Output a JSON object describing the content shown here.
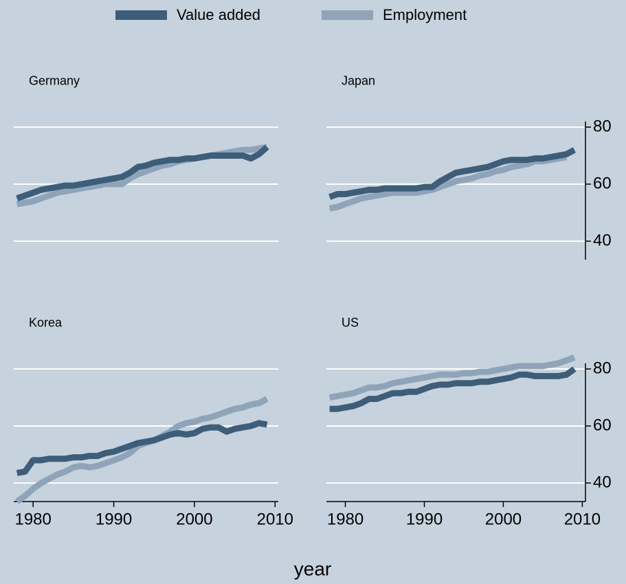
{
  "xlabel": "year",
  "chart_data": [
    {
      "type": "line",
      "title": "Germany",
      "x_axis": false,
      "y_tick_labels": false,
      "x": [
        1978,
        1979,
        1980,
        1981,
        1982,
        1983,
        1984,
        1985,
        1986,
        1987,
        1988,
        1989,
        1990,
        1991,
        1992,
        1993,
        1994,
        1995,
        1996,
        1997,
        1998,
        1999,
        2000,
        2001,
        2002,
        2003,
        2004,
        2005,
        2006,
        2007,
        2008,
        2009
      ],
      "xlim": [
        1977.6,
        2010.4
      ],
      "xticks": [
        1980,
        1990,
        2000,
        2010
      ],
      "ylim": [
        33.5,
        82
      ],
      "yticks": [
        40,
        60,
        80
      ],
      "grid": true,
      "series": [
        {
          "name": "Value added",
          "color": "#3d5d78",
          "values": [
            55,
            56,
            57,
            58,
            58.5,
            59,
            59.5,
            59.5,
            60,
            60.5,
            61,
            61.5,
            62,
            62.5,
            64,
            66,
            66.5,
            67.5,
            68,
            68.5,
            68.5,
            69,
            69,
            69.5,
            70,
            70,
            70,
            70,
            70,
            69,
            70.5,
            73
          ]
        },
        {
          "name": "Employment",
          "color": "#8fa4b8",
          "values": [
            53,
            53.5,
            54,
            55,
            56,
            57,
            57.5,
            58,
            58.5,
            59,
            59.5,
            60,
            60,
            60,
            62,
            63.5,
            64.5,
            65.5,
            66.5,
            67,
            68,
            68.5,
            69,
            69.5,
            70,
            70.5,
            71,
            71.5,
            72,
            72,
            72.5,
            73
          ]
        }
      ]
    },
    {
      "type": "line",
      "title": "Japan",
      "x_axis": false,
      "y_tick_labels": true,
      "x": [
        1978,
        1979,
        1980,
        1981,
        1982,
        1983,
        1984,
        1985,
        1986,
        1987,
        1988,
        1989,
        1990,
        1991,
        1992,
        1993,
        1994,
        1995,
        1996,
        1997,
        1998,
        1999,
        2000,
        2001,
        2002,
        2003,
        2004,
        2005,
        2006,
        2007,
        2008,
        2009
      ],
      "xlim": [
        1977.6,
        2010.4
      ],
      "xticks": [
        1980,
        1990,
        2000,
        2010
      ],
      "ylim": [
        33.5,
        82
      ],
      "yticks": [
        40,
        60,
        80
      ],
      "grid": true,
      "series": [
        {
          "name": "Value added",
          "color": "#3d5d78",
          "values": [
            55.5,
            56.5,
            56.5,
            57,
            57.5,
            58,
            58,
            58.5,
            58.5,
            58.5,
            58.5,
            58.5,
            59,
            59,
            61,
            62.5,
            64,
            64.5,
            65,
            65.5,
            66,
            67,
            68,
            68.5,
            68.5,
            68.5,
            69,
            69,
            69.5,
            70,
            70.5,
            72
          ]
        },
        {
          "name": "Employment",
          "color": "#8fa4b8",
          "values": [
            51.5,
            52,
            53,
            54,
            55,
            55.5,
            56,
            56.5,
            57,
            57,
            57,
            57,
            57.5,
            58,
            59,
            60,
            61,
            61.5,
            62,
            63,
            63.5,
            64.5,
            65,
            66,
            66.5,
            67,
            68,
            68,
            68.5,
            69,
            69.5,
            null
          ]
        }
      ]
    },
    {
      "type": "line",
      "title": "Korea",
      "x_axis": true,
      "y_tick_labels": false,
      "x": [
        1978,
        1979,
        1980,
        1981,
        1982,
        1983,
        1984,
        1985,
        1986,
        1987,
        1988,
        1989,
        1990,
        1991,
        1992,
        1993,
        1994,
        1995,
        1996,
        1997,
        1998,
        1999,
        2000,
        2001,
        2002,
        2003,
        2004,
        2005,
        2006,
        2007,
        2008,
        2009
      ],
      "xlim": [
        1977.6,
        2010.4
      ],
      "xticks": [
        1980,
        1990,
        2000,
        2010
      ],
      "ylim": [
        33.5,
        82
      ],
      "yticks": [
        40,
        60,
        80
      ],
      "grid": true,
      "series": [
        {
          "name": "Value added",
          "color": "#3d5d78",
          "values": [
            43.5,
            44,
            48,
            48,
            48.5,
            48.5,
            48.5,
            49,
            49,
            49.5,
            49.5,
            50.5,
            51,
            52,
            53,
            54,
            54.5,
            55,
            56,
            57,
            57.5,
            57,
            57.5,
            59,
            59.5,
            59.5,
            58,
            59,
            59.5,
            60,
            61,
            60.5
          ]
        },
        {
          "name": "Employment",
          "color": "#8fa4b8",
          "values": [
            33.5,
            35.5,
            38,
            40,
            41.5,
            43,
            44,
            45.5,
            46,
            45.5,
            46,
            47,
            48,
            49,
            50.5,
            53,
            54,
            55,
            56.5,
            58,
            60,
            61,
            61.5,
            62.5,
            63,
            64,
            65,
            66,
            66.5,
            67.5,
            68,
            69.5
          ]
        }
      ]
    },
    {
      "type": "line",
      "title": "US",
      "x_axis": true,
      "y_tick_labels": true,
      "x": [
        1978,
        1979,
        1980,
        1981,
        1982,
        1983,
        1984,
        1985,
        1986,
        1987,
        1988,
        1989,
        1990,
        1991,
        1992,
        1993,
        1994,
        1995,
        1996,
        1997,
        1998,
        1999,
        2000,
        2001,
        2002,
        2003,
        2004,
        2005,
        2006,
        2007,
        2008,
        2009
      ],
      "xlim": [
        1977.6,
        2010.4
      ],
      "xticks": [
        1980,
        1990,
        2000,
        2010
      ],
      "ylim": [
        33.5,
        82
      ],
      "yticks": [
        40,
        60,
        80
      ],
      "grid": true,
      "series": [
        {
          "name": "Value added",
          "color": "#3d5d78",
          "values": [
            66,
            66,
            66.5,
            67,
            68,
            69.5,
            69.5,
            70.5,
            71.5,
            71.5,
            72,
            72,
            73,
            74,
            74.5,
            74.5,
            75,
            75,
            75,
            75.5,
            75.5,
            76,
            76.5,
            77,
            78,
            78,
            77.5,
            77.5,
            77.5,
            77.5,
            78,
            80
          ]
        },
        {
          "name": "Employment",
          "color": "#8fa4b8",
          "values": [
            70,
            70.5,
            71,
            71.5,
            72.5,
            73.5,
            73.5,
            74,
            75,
            75.5,
            76,
            76.5,
            77,
            77.5,
            78,
            78,
            78,
            78.5,
            78.5,
            79,
            79,
            79.5,
            80,
            80.5,
            81,
            81,
            81,
            81,
            81.5,
            82,
            83,
            84
          ]
        }
      ]
    }
  ]
}
